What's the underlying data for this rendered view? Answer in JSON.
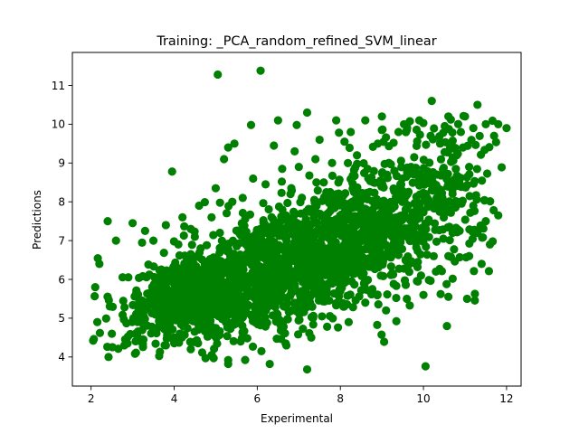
{
  "chart_data": {
    "type": "scatter",
    "title": "Training: _PCA_random_refined_SVM_linear",
    "xlabel": "Experimental",
    "ylabel": "Predictions",
    "xlim": [
      1.55,
      12.35
    ],
    "ylim": [
      3.25,
      11.85
    ],
    "xticks": [
      2,
      4,
      6,
      8,
      10,
      12
    ],
    "yticks": [
      4,
      5,
      6,
      7,
      8,
      9,
      10,
      11
    ],
    "xtick_labels": [
      "2",
      "4",
      "6",
      "8",
      "10",
      "12"
    ],
    "ytick_labels": [
      "4",
      "5",
      "6",
      "7",
      "8",
      "9",
      "10",
      "11"
    ],
    "grid": false,
    "marker_color": "#008000",
    "series": [
      {
        "points": [
          [
            5.05,
            11.28
          ],
          [
            6.08,
            11.38
          ],
          [
            10.2,
            10.6
          ],
          [
            11.3,
            10.5
          ],
          [
            10.6,
            10.2
          ],
          [
            11.0,
            10.2
          ],
          [
            11.8,
            10.0
          ],
          [
            11.5,
            10.0
          ],
          [
            11.2,
            9.9
          ],
          [
            10.9,
            9.8
          ],
          [
            11.7,
            9.7
          ],
          [
            12.0,
            9.9
          ],
          [
            9.9,
            10.1
          ],
          [
            9.0,
            10.2
          ],
          [
            8.6,
            10.1
          ],
          [
            7.9,
            10.1
          ],
          [
            7.2,
            10.3
          ],
          [
            6.5,
            10.1
          ],
          [
            6.95,
            9.98
          ],
          [
            5.85,
            9.98
          ],
          [
            5.45,
            9.5
          ],
          [
            5.3,
            9.4
          ],
          [
            5.2,
            9.1
          ],
          [
            3.95,
            8.78
          ],
          [
            6.4,
            9.45
          ],
          [
            6.9,
            9.3
          ],
          [
            7.5,
            9.6
          ],
          [
            8.25,
            9.8
          ],
          [
            9.6,
            9.85
          ],
          [
            10.4,
            9.5
          ],
          [
            10.8,
            9.2
          ],
          [
            11.1,
            8.9
          ],
          [
            10.6,
            8.5
          ],
          [
            10.9,
            8.0
          ],
          [
            11.2,
            7.9
          ],
          [
            11.5,
            7.5
          ],
          [
            11.8,
            7.65
          ],
          [
            11.3,
            7.2
          ],
          [
            10.7,
            7.2
          ],
          [
            11.6,
            6.9
          ],
          [
            11.4,
            6.4
          ],
          [
            11.1,
            6.6
          ],
          [
            10.6,
            6.6
          ],
          [
            10.3,
            6.2
          ],
          [
            10.0,
            5.6
          ],
          [
            9.6,
            5.5
          ],
          [
            9.1,
            5.2
          ],
          [
            11.05,
            5.5
          ],
          [
            10.05,
            3.76
          ],
          [
            7.2,
            3.68
          ],
          [
            6.3,
            3.82
          ],
          [
            5.3,
            3.82
          ],
          [
            5.3,
            3.92
          ],
          [
            4.95,
            3.97
          ],
          [
            2.42,
            4.0
          ],
          [
            2.05,
            4.42
          ],
          [
            2.15,
            4.9
          ],
          [
            2.4,
            7.5
          ],
          [
            2.6,
            7.0
          ],
          [
            2.2,
            6.4
          ],
          [
            2.1,
            5.8
          ],
          [
            3.0,
            7.45
          ],
          [
            3.3,
            7.25
          ],
          [
            3.5,
            7.0
          ],
          [
            3.8,
            7.4
          ],
          [
            4.2,
            7.6
          ],
          [
            4.4,
            7.3
          ],
          [
            4.6,
            7.9
          ],
          [
            4.9,
            7.6
          ],
          [
            5.0,
            8.35
          ],
          [
            5.4,
            8.0
          ],
          [
            5.65,
            8.1
          ],
          [
            5.9,
            8.6
          ],
          [
            6.2,
            8.45
          ],
          [
            6.6,
            8.85
          ],
          [
            7.0,
            8.9
          ],
          [
            7.4,
            9.1
          ],
          [
            7.8,
            9.0
          ],
          [
            8.4,
            9.2
          ],
          [
            8.9,
            9.5
          ],
          [
            9.3,
            8.8
          ],
          [
            9.7,
            8.9
          ],
          [
            10.2,
            8.3
          ],
          [
            9.9,
            7.6
          ],
          [
            8.0,
            5.7
          ],
          [
            8.6,
            5.4
          ],
          [
            8.2,
            4.9
          ],
          [
            7.3,
            4.5
          ],
          [
            6.7,
            4.3
          ],
          [
            6.1,
            4.15
          ],
          [
            5.6,
            4.4
          ],
          [
            4.4,
            4.2
          ],
          [
            3.8,
            4.3
          ],
          [
            3.2,
            4.4
          ],
          [
            2.8,
            4.3
          ],
          [
            2.5,
            4.6
          ],
          [
            9.4,
            9.8
          ],
          [
            8.1,
            9.55
          ],
          [
            7.6,
            8.5
          ],
          [
            6.8,
            8.2
          ],
          [
            5.1,
            7.2
          ],
          [
            4.1,
            6.9
          ]
        ]
      }
    ],
    "cloud": {
      "count": 2400,
      "clusters": [
        {
          "weight": 0.3,
          "x_mean": 4.6,
          "x_sd": 0.95,
          "y_mean": 5.55,
          "y_sd": 0.55,
          "corr": 0.35
        },
        {
          "weight": 0.4,
          "x_mean": 6.6,
          "x_sd": 1.15,
          "y_mean": 6.35,
          "y_sd": 0.85,
          "corr": 0.45
        },
        {
          "weight": 0.2,
          "x_mean": 8.5,
          "x_sd": 0.95,
          "y_mean": 7.2,
          "y_sd": 1.0,
          "corr": 0.35
        },
        {
          "weight": 0.1,
          "x_mean": 10.3,
          "x_sd": 0.9,
          "y_mean": 7.9,
          "y_sd": 1.2,
          "corr": 0.3
        }
      ],
      "x_range": [
        2.0,
        11.9
      ],
      "y_range": [
        3.7,
        10.6
      ]
    }
  }
}
